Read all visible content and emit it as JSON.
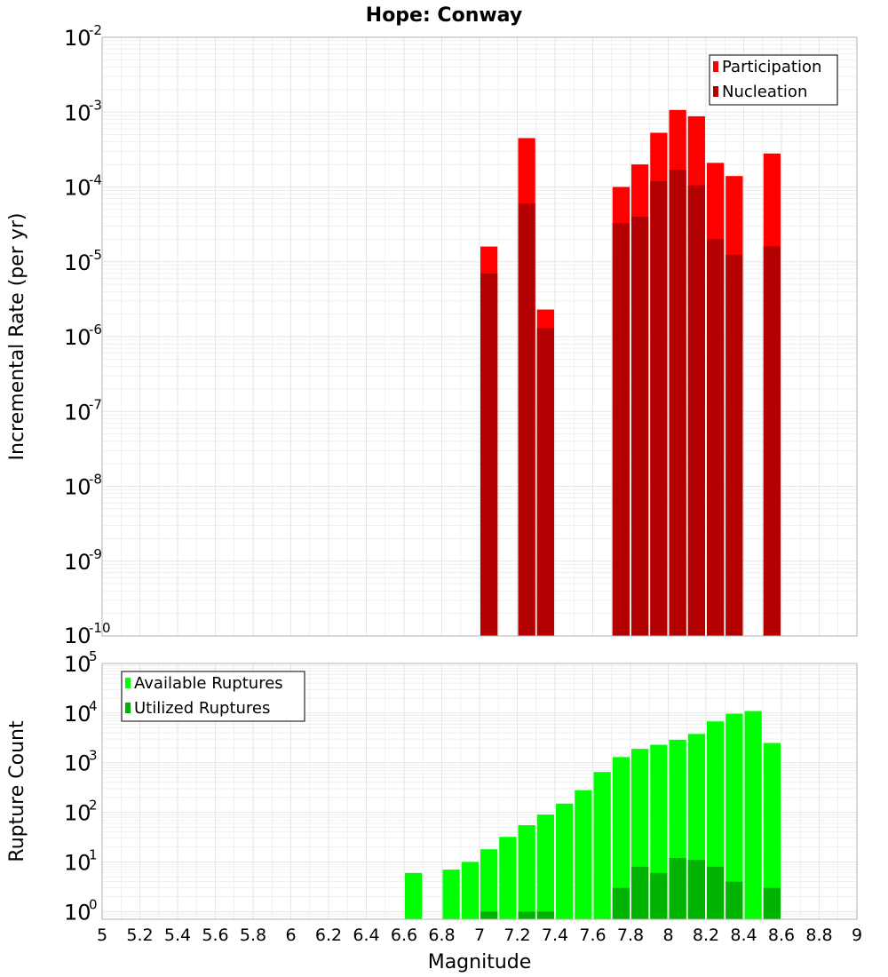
{
  "title": "Hope: Conway",
  "xlabel": "Magnitude",
  "x_ticks": [
    "5",
    "5.2",
    "5.4",
    "5.6",
    "5.8",
    "6",
    "6.2",
    "6.4",
    "6.6",
    "6.8",
    "7",
    "7.2",
    "7.4",
    "7.6",
    "7.8",
    "8",
    "8.2",
    "8.4",
    "8.6",
    "8.8",
    "9"
  ],
  "colors": {
    "participation": "#ff0000",
    "nucleation": "#b30000",
    "available": "#00ff00",
    "utilized": "#00b300",
    "grid": "#e6e6e6"
  },
  "chart_data": [
    {
      "type": "bar",
      "name": "rates",
      "ylabel": "Incremental Rate (per yr)",
      "yscale": "log",
      "xlim": [
        5,
        9
      ],
      "ylim": [
        1e-10,
        0.01
      ],
      "y_tick_exponents": [
        "-2",
        "-3",
        "-4",
        "-5",
        "-6",
        "-7",
        "-8",
        "-9",
        "-10"
      ],
      "bin_width": 0.1,
      "legend_position": "top-right",
      "series": [
        {
          "name": "Participation",
          "x": [
            7.05,
            7.25,
            7.35,
            7.75,
            7.85,
            7.95,
            8.05,
            8.15,
            8.25,
            8.35,
            8.55
          ],
          "values": [
            1.6e-05,
            0.00045,
            2.3e-06,
            0.0001,
            0.0002,
            0.00053,
            0.00107,
            0.00088,
            0.00021,
            0.00014,
            0.00028
          ]
        },
        {
          "name": "Nucleation",
          "x": [
            7.05,
            7.25,
            7.35,
            7.75,
            7.85,
            7.95,
            8.05,
            8.15,
            8.25,
            8.35,
            8.55
          ],
          "values": [
            7e-06,
            6e-05,
            1.3e-06,
            3.3e-05,
            4e-05,
            0.00012,
            0.00017,
            0.000105,
            2e-05,
            1.25e-05,
            1.6e-05
          ]
        }
      ]
    },
    {
      "type": "bar",
      "name": "counts",
      "ylabel": "Rupture Count",
      "yscale": "log",
      "xlim": [
        5,
        9
      ],
      "ylim": [
        0.7,
        100000.0
      ],
      "y_tick_exponents": [
        "5",
        "4",
        "3",
        "2",
        "1",
        "0"
      ],
      "bin_width": 0.1,
      "legend_position": "top-left",
      "series": [
        {
          "name": "Available Ruptures",
          "x": [
            6.65,
            6.85,
            6.95,
            7.05,
            7.15,
            7.25,
            7.35,
            7.45,
            7.55,
            7.65,
            7.75,
            7.85,
            7.95,
            8.05,
            8.15,
            8.25,
            8.35,
            8.45,
            8.55
          ],
          "values": [
            6,
            7,
            10,
            18,
            32,
            55,
            90,
            150,
            280,
            650,
            1300,
            1900,
            2300,
            2900,
            3800,
            6800,
            9700,
            11000,
            2500
          ]
        },
        {
          "name": "Utilized Ruptures",
          "x": [
            7.05,
            7.25,
            7.35,
            7.75,
            7.85,
            7.95,
            8.05,
            8.15,
            8.25,
            8.35,
            8.55
          ],
          "values": [
            1,
            1,
            1,
            3,
            8,
            6,
            12,
            11,
            8,
            4,
            3
          ]
        }
      ]
    }
  ]
}
